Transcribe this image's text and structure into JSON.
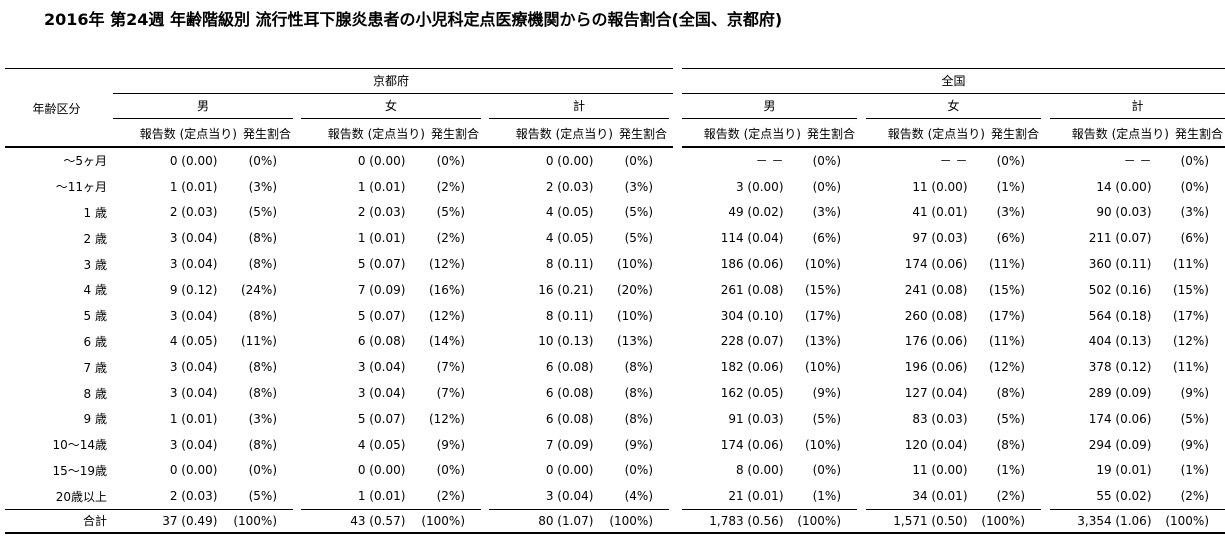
{
  "title": "2016年 第24週 年齢階級別 流行性耳下腺炎患者の小児科定点医療機関からの報告割合(全国、京都府)",
  "table": {
    "age_header": "年齢区分",
    "regions": [
      {
        "label": "京都府"
      },
      {
        "label": "全国"
      }
    ],
    "genders": [
      "男",
      "女",
      "計"
    ],
    "subheader": {
      "count": "報告数 (定点当り)",
      "ratio": "発生割合"
    },
    "rows": [
      {
        "label": "～5ヶ月",
        "cells": [
          [
            "0 (0.00)",
            "(0%)"
          ],
          [
            "0 (0.00)",
            "(0%)"
          ],
          [
            "0 (0.00)",
            "(0%)"
          ],
          [
            "－ －",
            "(0%)"
          ],
          [
            "－ －",
            "(0%)"
          ],
          [
            "－ －",
            "(0%)"
          ]
        ]
      },
      {
        "label": "～11ヶ月",
        "cells": [
          [
            "1 (0.01)",
            "(3%)"
          ],
          [
            "1 (0.01)",
            "(2%)"
          ],
          [
            "2 (0.03)",
            "(3%)"
          ],
          [
            "3 (0.00)",
            "(0%)"
          ],
          [
            "11 (0.00)",
            "(1%)"
          ],
          [
            "14 (0.00)",
            "(0%)"
          ]
        ]
      },
      {
        "label": "1 歳",
        "cells": [
          [
            "2 (0.03)",
            "(5%)"
          ],
          [
            "2 (0.03)",
            "(5%)"
          ],
          [
            "4 (0.05)",
            "(5%)"
          ],
          [
            "49 (0.02)",
            "(3%)"
          ],
          [
            "41 (0.01)",
            "(3%)"
          ],
          [
            "90 (0.03)",
            "(3%)"
          ]
        ]
      },
      {
        "label": "2 歳",
        "cells": [
          [
            "3 (0.04)",
            "(8%)"
          ],
          [
            "1 (0.01)",
            "(2%)"
          ],
          [
            "4 (0.05)",
            "(5%)"
          ],
          [
            "114 (0.04)",
            "(6%)"
          ],
          [
            "97 (0.03)",
            "(6%)"
          ],
          [
            "211 (0.07)",
            "(6%)"
          ]
        ]
      },
      {
        "label": "3 歳",
        "cells": [
          [
            "3 (0.04)",
            "(8%)"
          ],
          [
            "5 (0.07)",
            "(12%)"
          ],
          [
            "8 (0.11)",
            "(10%)"
          ],
          [
            "186 (0.06)",
            "(10%)"
          ],
          [
            "174 (0.06)",
            "(11%)"
          ],
          [
            "360 (0.11)",
            "(11%)"
          ]
        ]
      },
      {
        "label": "4 歳",
        "cells": [
          [
            "9 (0.12)",
            "(24%)"
          ],
          [
            "7 (0.09)",
            "(16%)"
          ],
          [
            "16 (0.21)",
            "(20%)"
          ],
          [
            "261 (0.08)",
            "(15%)"
          ],
          [
            "241 (0.08)",
            "(15%)"
          ],
          [
            "502 (0.16)",
            "(15%)"
          ]
        ]
      },
      {
        "label": "5 歳",
        "cells": [
          [
            "3 (0.04)",
            "(8%)"
          ],
          [
            "5 (0.07)",
            "(12%)"
          ],
          [
            "8 (0.11)",
            "(10%)"
          ],
          [
            "304 (0.10)",
            "(17%)"
          ],
          [
            "260 (0.08)",
            "(17%)"
          ],
          [
            "564 (0.18)",
            "(17%)"
          ]
        ]
      },
      {
        "label": "6 歳",
        "cells": [
          [
            "4 (0.05)",
            "(11%)"
          ],
          [
            "6 (0.08)",
            "(14%)"
          ],
          [
            "10 (0.13)",
            "(13%)"
          ],
          [
            "228 (0.07)",
            "(13%)"
          ],
          [
            "176 (0.06)",
            "(11%)"
          ],
          [
            "404 (0.13)",
            "(12%)"
          ]
        ]
      },
      {
        "label": "7 歳",
        "cells": [
          [
            "3 (0.04)",
            "(8%)"
          ],
          [
            "3 (0.04)",
            "(7%)"
          ],
          [
            "6 (0.08)",
            "(8%)"
          ],
          [
            "182 (0.06)",
            "(10%)"
          ],
          [
            "196 (0.06)",
            "(12%)"
          ],
          [
            "378 (0.12)",
            "(11%)"
          ]
        ]
      },
      {
        "label": "8 歳",
        "cells": [
          [
            "3 (0.04)",
            "(8%)"
          ],
          [
            "3 (0.04)",
            "(7%)"
          ],
          [
            "6 (0.08)",
            "(8%)"
          ],
          [
            "162 (0.05)",
            "(9%)"
          ],
          [
            "127 (0.04)",
            "(8%)"
          ],
          [
            "289 (0.09)",
            "(9%)"
          ]
        ]
      },
      {
        "label": "9 歳",
        "cells": [
          [
            "1 (0.01)",
            "(3%)"
          ],
          [
            "5 (0.07)",
            "(12%)"
          ],
          [
            "6 (0.08)",
            "(8%)"
          ],
          [
            "91 (0.03)",
            "(5%)"
          ],
          [
            "83 (0.03)",
            "(5%)"
          ],
          [
            "174 (0.06)",
            "(5%)"
          ]
        ]
      },
      {
        "label": "10～14歳",
        "cells": [
          [
            "3 (0.04)",
            "(8%)"
          ],
          [
            "4 (0.05)",
            "(9%)"
          ],
          [
            "7 (0.09)",
            "(9%)"
          ],
          [
            "174 (0.06)",
            "(10%)"
          ],
          [
            "120 (0.04)",
            "(8%)"
          ],
          [
            "294 (0.09)",
            "(9%)"
          ]
        ]
      },
      {
        "label": "15～19歳",
        "cells": [
          [
            "0 (0.00)",
            "(0%)"
          ],
          [
            "0 (0.00)",
            "(0%)"
          ],
          [
            "0 (0.00)",
            "(0%)"
          ],
          [
            "8 (0.00)",
            "(0%)"
          ],
          [
            "11 (0.00)",
            "(1%)"
          ],
          [
            "19 (0.01)",
            "(1%)"
          ]
        ]
      },
      {
        "label": "20歳以上",
        "cells": [
          [
            "2 (0.03)",
            "(5%)"
          ],
          [
            "1 (0.01)",
            "(2%)"
          ],
          [
            "3 (0.04)",
            "(4%)"
          ],
          [
            "21 (0.01)",
            "(1%)"
          ],
          [
            "34 (0.01)",
            "(2%)"
          ],
          [
            "55 (0.02)",
            "(2%)"
          ]
        ]
      }
    ],
    "total": {
      "label": "合計",
      "cells": [
        [
          "37 (0.49)",
          "(100%)"
        ],
        [
          "43 (0.57)",
          "(100%)"
        ],
        [
          "80 (1.07)",
          "(100%)"
        ],
        [
          "1,783 (0.56)",
          "(100%)"
        ],
        [
          "1,571 (0.50)",
          "(100%)"
        ],
        [
          "3,354 (1.06)",
          "(100%)"
        ]
      ]
    }
  }
}
